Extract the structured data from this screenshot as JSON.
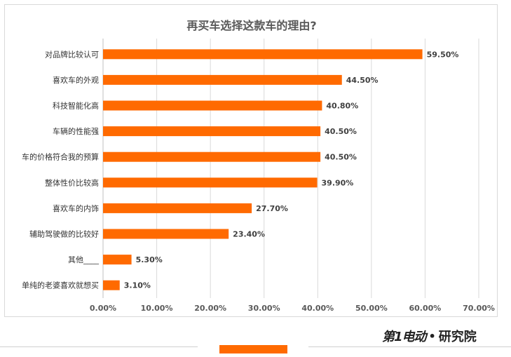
{
  "title": "再买车选择这款车的理由?",
  "brand": {
    "name": "第1电动",
    "dot": "•",
    "suffix": "研究院"
  },
  "colors": {
    "bar": "#ff6a00",
    "grid": "#d9d9d9",
    "text": "#404040"
  },
  "chart_data": {
    "type": "bar",
    "orientation": "horizontal",
    "title": "再买车选择这款车的理由?",
    "categories": [
      "对品牌比较认可",
      "喜欢车的外观",
      "科技智能化高",
      "车辆的性能强",
      "车的价格符合我的预算",
      "整体性价比较高",
      "喜欢车的内饰",
      "辅助驾驶做的比较好",
      "其他____",
      "单纯的老婆喜欢就想买"
    ],
    "values": [
      59.5,
      44.5,
      40.8,
      40.5,
      40.5,
      39.9,
      27.7,
      23.4,
      5.3,
      3.1
    ],
    "value_labels": [
      "59.50%",
      "44.50%",
      "40.80%",
      "40.50%",
      "40.50%",
      "39.90%",
      "27.70%",
      "23.40%",
      "5.30%",
      "3.10%"
    ],
    "xlim": [
      0,
      70
    ],
    "xticks": [
      0,
      10,
      20,
      30,
      40,
      50,
      60,
      70
    ],
    "xtick_labels": [
      "0.00%",
      "10.00%",
      "20.00%",
      "30.00%",
      "40.00%",
      "50.00%",
      "60.00%",
      "70.00%"
    ],
    "grid": true,
    "xlabel": "",
    "ylabel": ""
  }
}
